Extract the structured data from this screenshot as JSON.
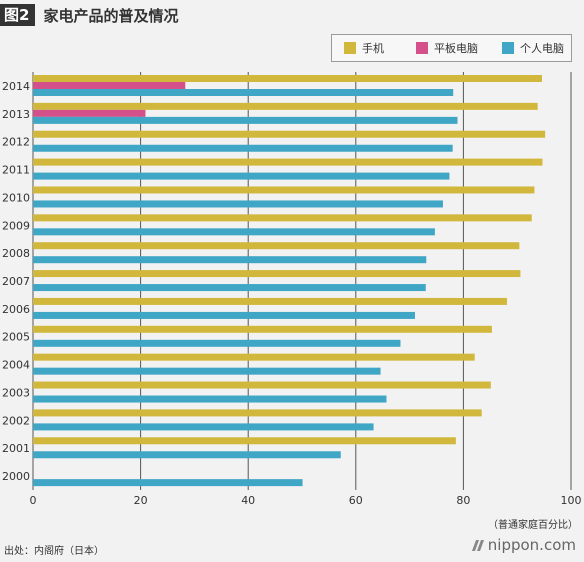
{
  "header": {
    "badge": "图2",
    "title": "家电产品的普及情况"
  },
  "legend": [
    {
      "label": "手机",
      "color": "#d1b83c"
    },
    {
      "label": "平板电脑",
      "color": "#d4508a"
    },
    {
      "label": "个人电脑",
      "color": "#3fa6c5"
    }
  ],
  "footer": {
    "unit_note": "（普通家庭百分比）",
    "source": "出处：内阁府（日本）",
    "brand": "nippon.com"
  },
  "colors": {
    "mobile": "#d1b83c",
    "tablet": "#d4508a",
    "pc": "#3fa6c5",
    "grid": "#555555",
    "background": "#f2f2f2"
  },
  "chart_data": {
    "type": "bar",
    "orientation": "horizontal",
    "title": "家电产品的普及情况",
    "xlabel": "（普通家庭百分比）",
    "ylabel": "",
    "xlim": [
      0,
      100
    ],
    "x_ticks": [
      0,
      20,
      40,
      60,
      80,
      100
    ],
    "grid": true,
    "legend_position": "top-right",
    "categories": [
      "2014",
      "2013",
      "2012",
      "2011",
      "2010",
      "2009",
      "2008",
      "2007",
      "2006",
      "2005",
      "2004",
      "2003",
      "2002",
      "2001",
      "2000"
    ],
    "series": [
      {
        "name": "手机",
        "color": "#d1b83c",
        "values": [
          94.6,
          93.8,
          95.2,
          94.7,
          93.2,
          92.7,
          90.4,
          90.6,
          88.1,
          85.3,
          82.1,
          85.1,
          83.4,
          78.6,
          null
        ]
      },
      {
        "name": "平板电脑",
        "color": "#d4508a",
        "values": [
          28.3,
          20.9,
          null,
          null,
          null,
          null,
          null,
          null,
          null,
          null,
          null,
          null,
          null,
          null,
          null
        ]
      },
      {
        "name": "个人电脑",
        "color": "#3fa6c5",
        "values": [
          78.1,
          78.9,
          78.0,
          77.4,
          76.2,
          74.7,
          73.1,
          73.0,
          71.0,
          68.3,
          64.6,
          65.7,
          63.3,
          57.2,
          50.1
        ]
      }
    ]
  }
}
